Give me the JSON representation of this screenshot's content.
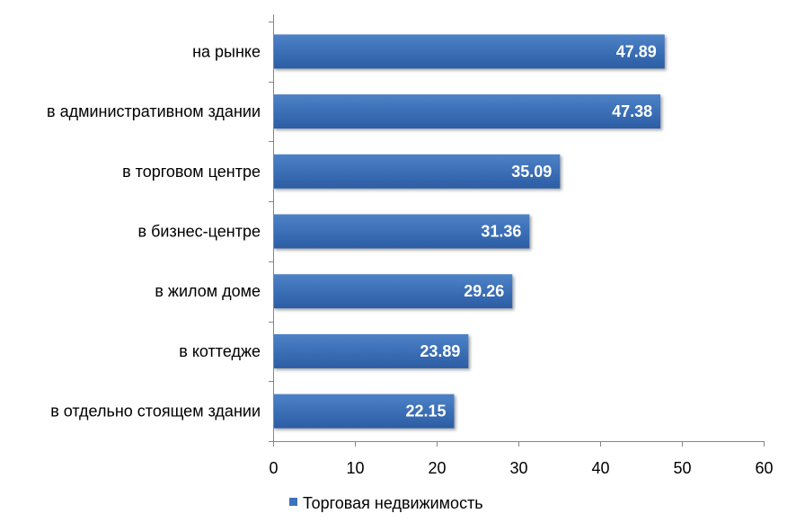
{
  "chart_data": {
    "type": "bar",
    "orientation": "horizontal",
    "categories": [
      "на рынке",
      "в административном  здании",
      "в торговом центре",
      "в бизнес-центре",
      "в жилом доме",
      "в коттедже",
      "в отдельно стоящем здании"
    ],
    "series": [
      {
        "name": "Торговая недвижимость",
        "values": [
          47.89,
          47.38,
          35.09,
          31.36,
          29.26,
          23.89,
          22.15
        ],
        "color": "#3f72b8"
      }
    ],
    "xlim": [
      0,
      60
    ],
    "x_ticks": [
      0,
      10,
      20,
      30,
      40,
      50,
      60
    ],
    "grid": false,
    "legend_position": "bottom",
    "data_labels": true
  }
}
